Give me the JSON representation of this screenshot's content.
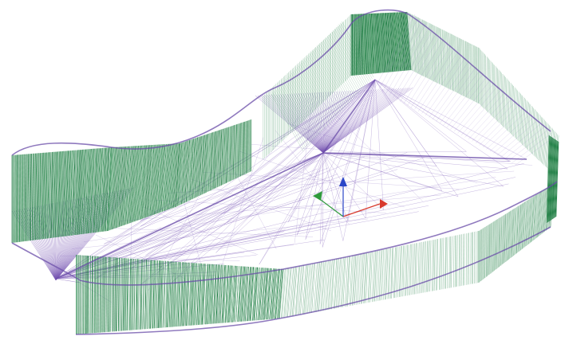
{
  "scene": {
    "kind": "wireframe-3d-mesh",
    "background_color": "#ffffff",
    "colors": {
      "wall_mesh": "#2e8b50",
      "wall_dense": "#1e7a42",
      "floor_mesh": "#8a6cc0",
      "floor_dense": "#7a58b4",
      "outline": "#6a4ca8",
      "axis_x": "#d83a2e",
      "axis_y": "#2f9a3c",
      "axis_z": "#2a46c8"
    },
    "axes": [
      "x-axis-arrow",
      "y-axis-arrow",
      "z-axis-arrow"
    ]
  }
}
